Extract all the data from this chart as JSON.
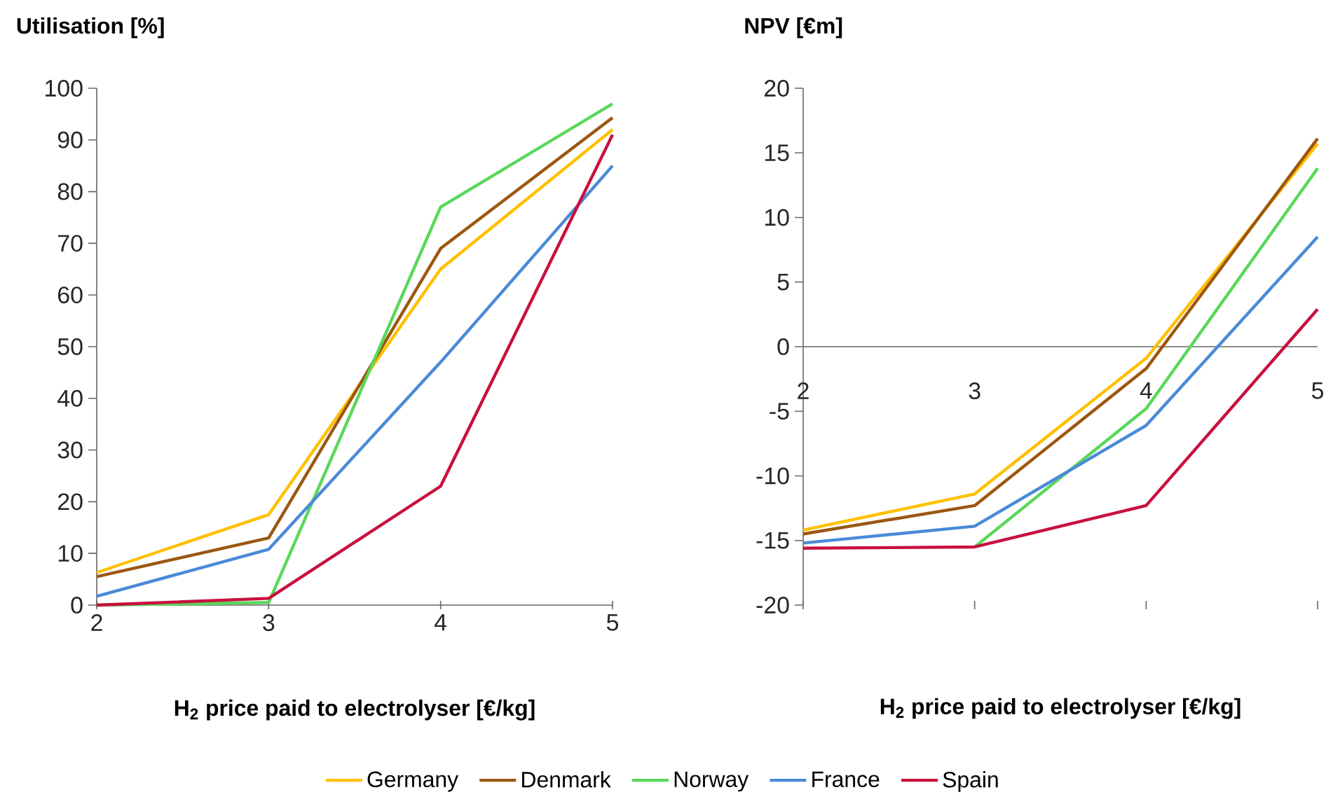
{
  "chart_data": [
    {
      "type": "line",
      "ylabel": "Utilisation [%]",
      "xlabel": "H$_{2}$ price paid to electrolyser [€/kg]",
      "x": [
        2,
        3,
        4,
        5
      ],
      "xlim": [
        2,
        5
      ],
      "xticks": [
        2,
        3,
        4,
        5
      ],
      "ylim": [
        0,
        100
      ],
      "yticks": [
        0,
        10,
        20,
        30,
        40,
        50,
        60,
        70,
        80,
        90,
        100
      ],
      "legend": "bottom",
      "series": [
        {
          "name": "Germany",
          "color": "#ffc000",
          "values": [
            6.3,
            17.5,
            65,
            92
          ]
        },
        {
          "name": "Denmark",
          "color": "#9c5711",
          "values": [
            5.5,
            13,
            69,
            94.3
          ]
        },
        {
          "name": "Norway",
          "color": "#5ad75a",
          "values": [
            0,
            0.5,
            77,
            97
          ]
        },
        {
          "name": "France",
          "color": "#4a8ad8",
          "values": [
            1.7,
            10.8,
            47,
            85
          ]
        },
        {
          "name": "Spain",
          "color": "#c8103e",
          "values": [
            0,
            1.3,
            23,
            91
          ]
        }
      ]
    },
    {
      "type": "line",
      "ylabel": "NPV [€m]",
      "xlabel": "H$_{2}$ price paid to electrolyser [€/kg]",
      "x": [
        2,
        3,
        4,
        5
      ],
      "xlim": [
        2,
        5
      ],
      "xticks": [
        2,
        3,
        4,
        5
      ],
      "ylim": [
        -20,
        20
      ],
      "yticks": [
        -20,
        -15,
        -10,
        -5,
        0,
        5,
        10,
        15,
        20
      ],
      "series": [
        {
          "color": "#ffc000",
          "values": [
            -14.2,
            -11.4,
            -0.9,
            15.7
          ]
        },
        {
          "color": "#9c5711",
          "values": [
            -14.5,
            -12.3,
            -1.7,
            16.1
          ]
        },
        {
          "color": "#5ad75a",
          "values": [
            null,
            -15.5,
            -4.8,
            13.8
          ]
        },
        {
          "color": "#4a8ad8",
          "values": [
            -15.2,
            -13.9,
            -6.1,
            8.5
          ]
        },
        {
          "color": "#c8103e",
          "values": [
            -15.6,
            -15.5,
            -12.3,
            2.9
          ]
        }
      ]
    }
  ]
}
